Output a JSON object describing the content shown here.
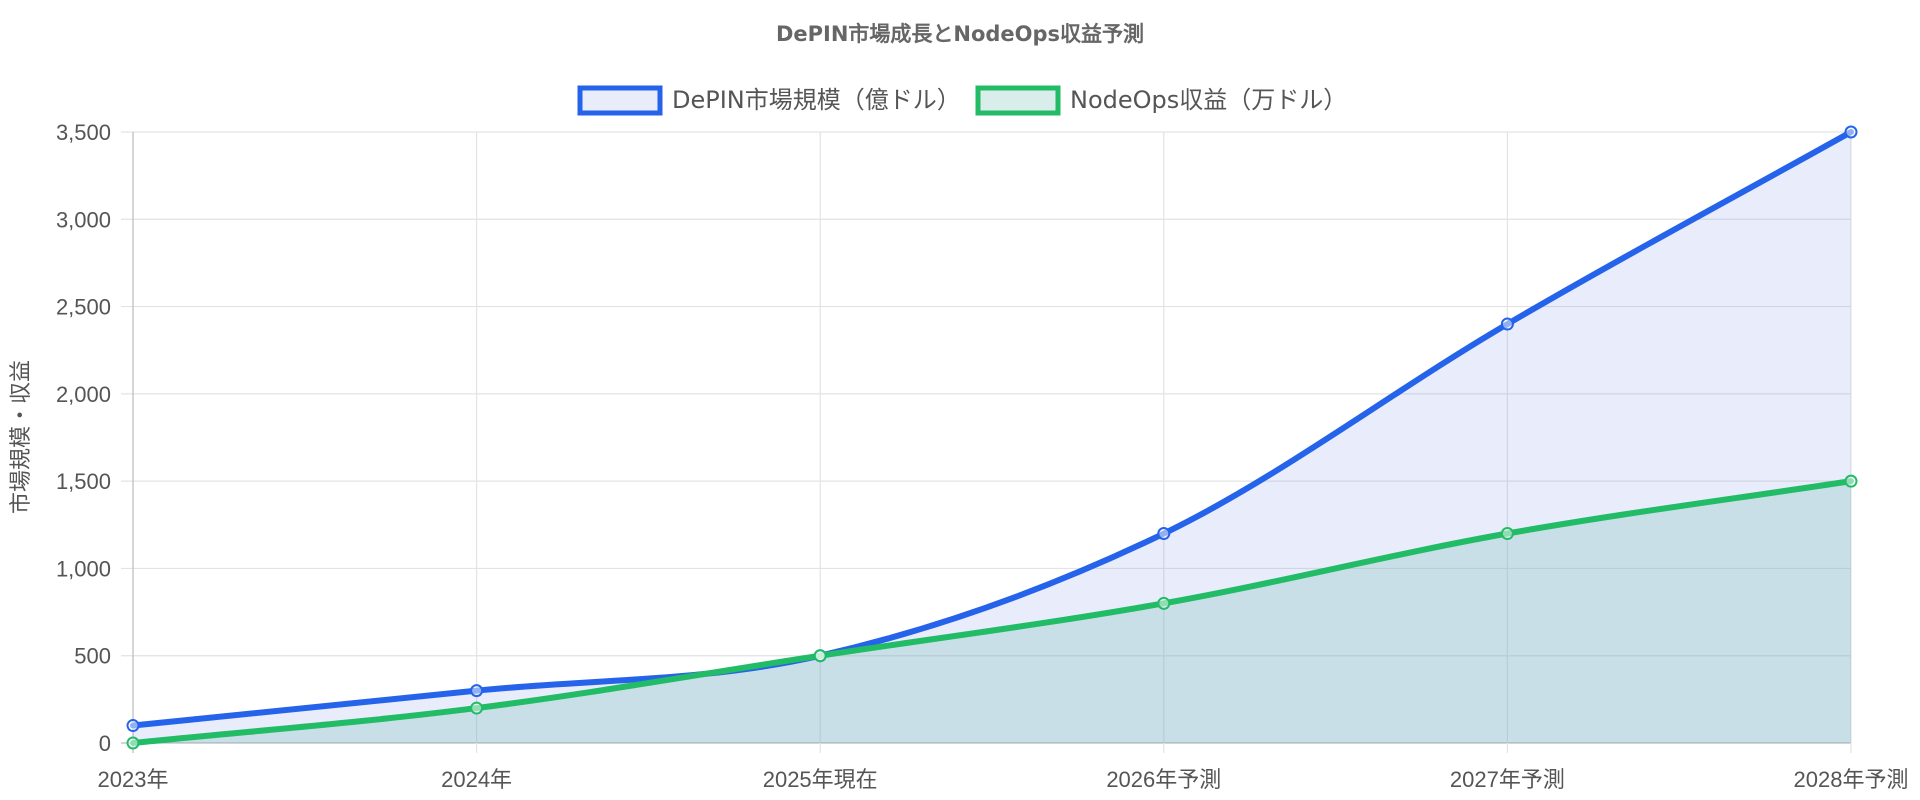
{
  "chart_data": {
    "type": "line",
    "title": "DePIN市場成長とNodeOps収益予測",
    "categories": [
      "2023年",
      "2024年",
      "2025年現在",
      "2026年予測",
      "2027年予測",
      "2028年予測"
    ],
    "series": [
      {
        "name": "DePIN市場規模（億ドル）",
        "values": [
          100,
          300,
          500,
          1200,
          2400,
          3500
        ],
        "color": "#2563eb",
        "fill": "rgba(99,130,230,0.15)"
      },
      {
        "name": "NodeOps収益（万ドル）",
        "values": [
          0,
          200,
          500,
          800,
          1200,
          1500
        ],
        "color": "#22bb66",
        "fill": "rgba(120,190,180,0.28)"
      }
    ],
    "ylabel": "市場規模・収益",
    "xlabel": "",
    "ylim": [
      0,
      3500
    ],
    "yticks": [
      0,
      500,
      1000,
      1500,
      2000,
      2500,
      3000,
      3500
    ],
    "ytick_labels": [
      "0",
      "500",
      "1,000",
      "1,500",
      "2,000",
      "2,500",
      "3,000",
      "3,500"
    ],
    "grid": true,
    "legend": "top-center"
  }
}
